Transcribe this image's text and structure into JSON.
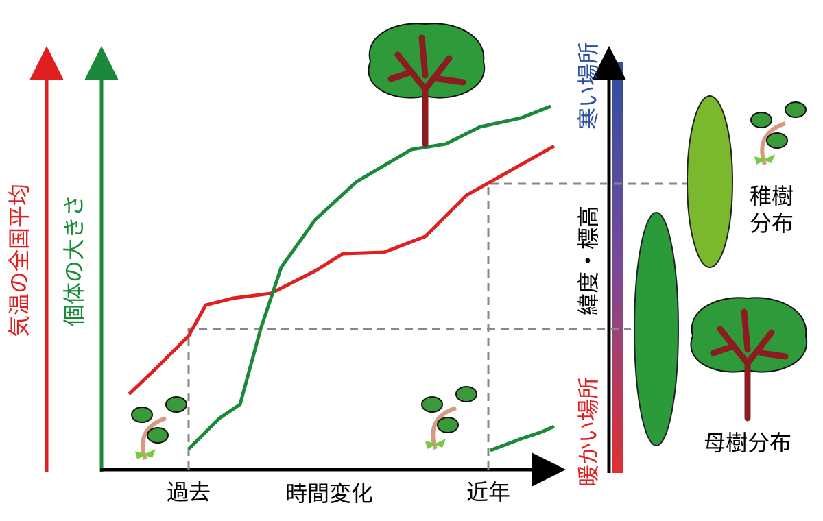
{
  "axes": {
    "temperature": "気温の全国平均",
    "size": "個体の大きさ",
    "time": "時間変化",
    "past": "過去",
    "recent": "近年",
    "cold": "寒い場所",
    "warm": "暖かい場所",
    "latitude": "緯度・標高"
  },
  "distributions": {
    "sapling": {
      "lines": [
        "稚樹",
        "分布"
      ]
    },
    "mother": "母樹分布"
  }
}
